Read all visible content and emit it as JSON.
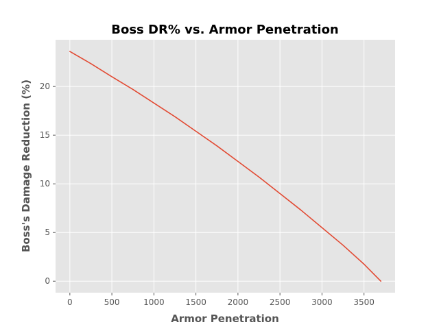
{
  "chart_data": {
    "type": "line",
    "title": "Boss DR%  vs.  Armor Penetration",
    "xlabel": "Armor Penetration",
    "ylabel": "Boss's Damage Reduction  (%)",
    "xlim": [
      -170,
      3870
    ],
    "ylim": [
      -1.18,
      24.8
    ],
    "xticks": [
      0,
      500,
      1000,
      1500,
      2000,
      2500,
      3000,
      3500
    ],
    "yticks": [
      0,
      5,
      10,
      15,
      20
    ],
    "grid": true,
    "series": [
      {
        "color": "#E24A33",
        "x": [
          0,
          250,
          500,
          750,
          1000,
          1250,
          1500,
          1750,
          2000,
          2250,
          2500,
          2750,
          3000,
          3250,
          3500,
          3700
        ],
        "y": [
          23.6,
          22.35,
          21.0,
          19.7,
          18.3,
          16.9,
          15.4,
          13.9,
          12.3,
          10.7,
          9.0,
          7.3,
          5.5,
          3.7,
          1.75,
          0.0
        ]
      }
    ]
  },
  "colors": {
    "plot_background": "#E5E5E5",
    "grid": "#FFFFFF",
    "tick_text": "#555555",
    "title_text": "#000000"
  }
}
